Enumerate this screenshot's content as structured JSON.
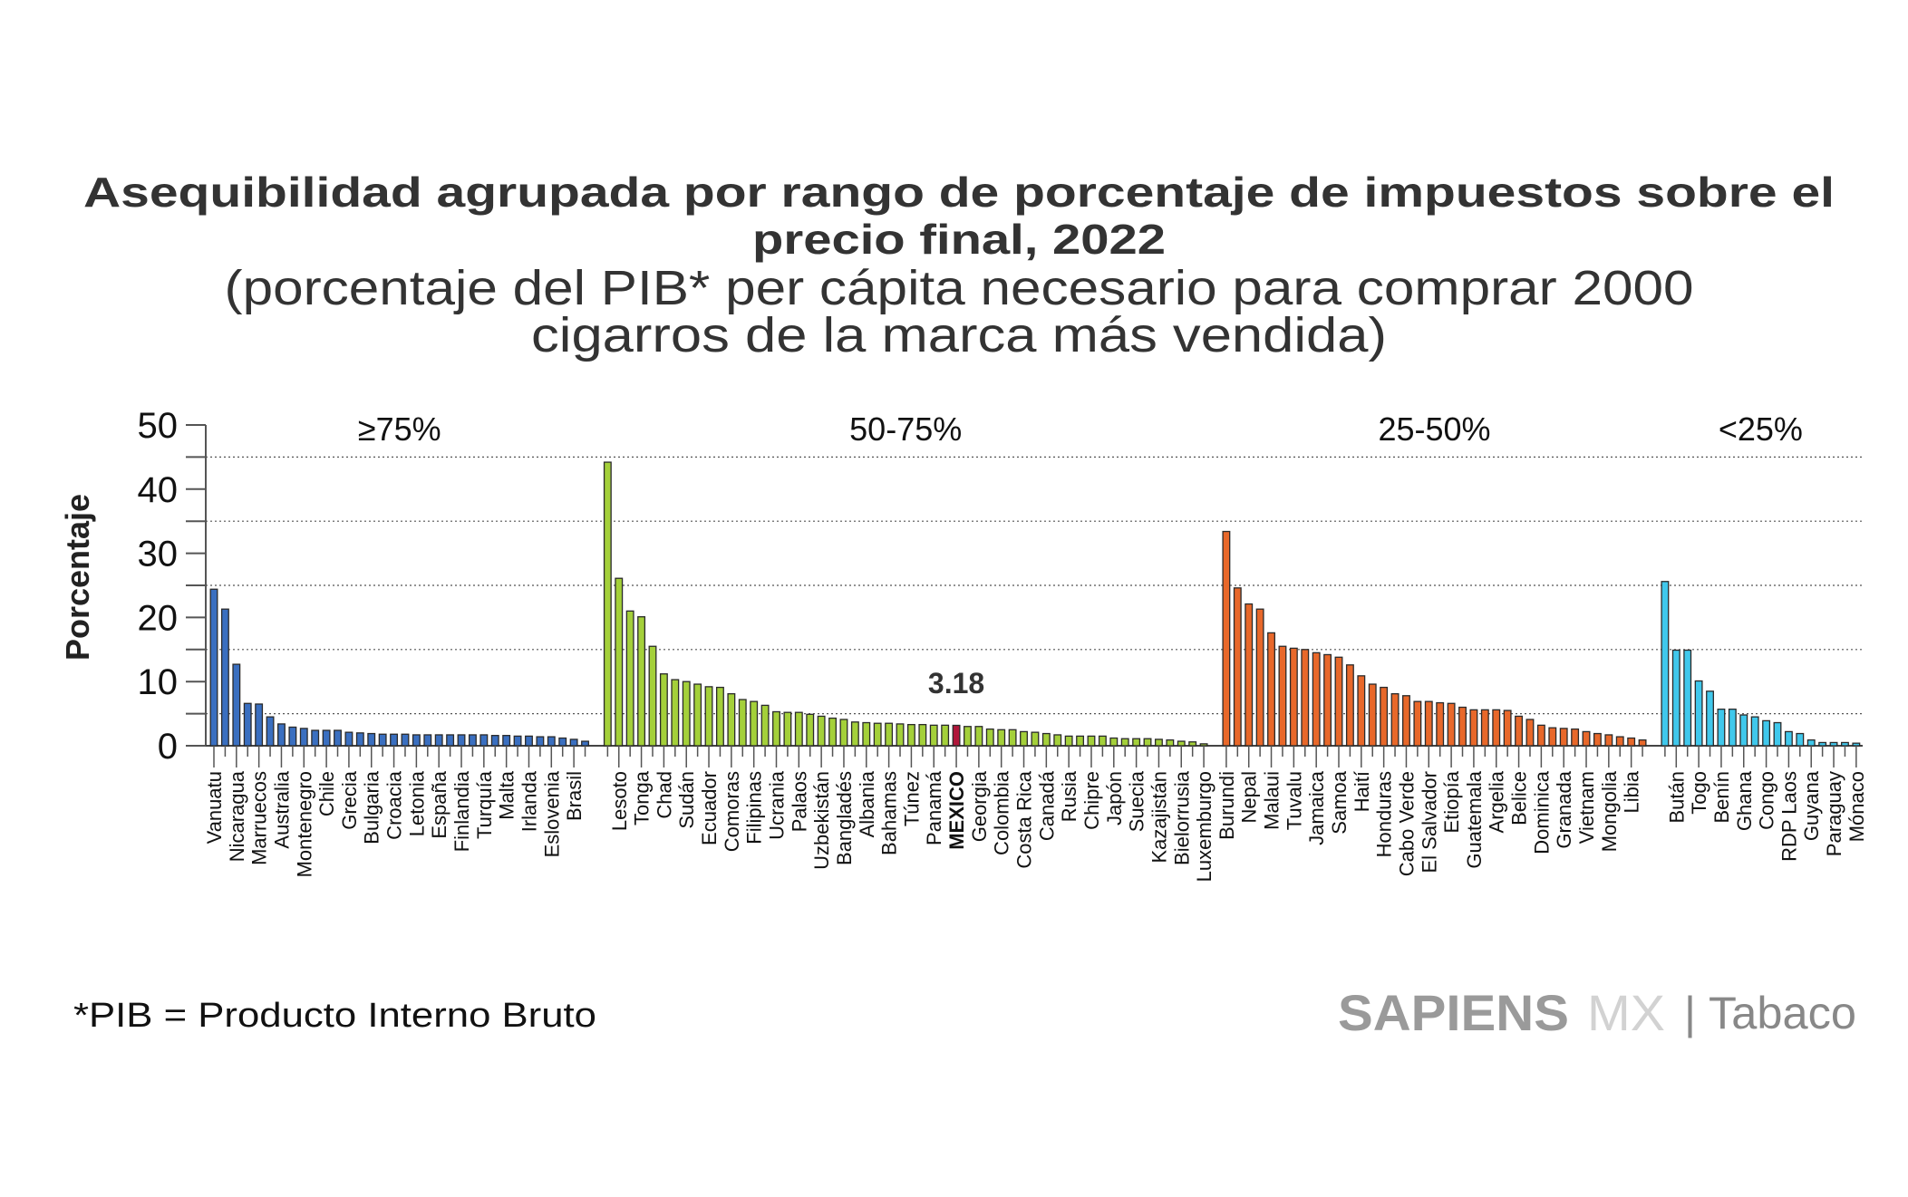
{
  "title_line1": "Asequibilidad agrupada por rango de porcentaje de impuestos sobre el",
  "title_line2": "precio final, 2022",
  "subtitle_line1": "(porcentaje del PIB* per cápita necesario para comprar 2000",
  "subtitle_line2": "cigarros de la marca más vendida)",
  "footnote": "*PIB = Producto Interno Bruto",
  "logo": {
    "brand": "SAPIENS",
    "suffix": "MX",
    "separator": "|",
    "section": "Tabaco"
  },
  "chart_data": {
    "type": "bar",
    "ylabel": "Porcentaje",
    "xlabel": "",
    "ylim": [
      0,
      50
    ],
    "yticks": [
      "0",
      "10",
      "20",
      "30",
      "40",
      "50"
    ],
    "grid": "dotted at 5, 15, 25, 35, 45",
    "highlight": {
      "country": "MEXICO",
      "value": 3.18,
      "label": "3.18",
      "color": "#b0163a"
    },
    "groups": [
      {
        "label": "≥75%",
        "color": "#3a6fc0",
        "countries": [
          "Vanuatu",
          "",
          "Nicaragua",
          "",
          "Marruecos",
          "",
          "Australia",
          "",
          "Montenegro",
          "",
          "Chile",
          "",
          "Grecia",
          "",
          "Bulgaria",
          "",
          "Croacia",
          "",
          "Letonia",
          "",
          "España",
          "",
          "Finlandia",
          "",
          "Turquía",
          "",
          "Malta",
          "",
          "Irlanda",
          "",
          "Eslovenia",
          "",
          "Brasil",
          ""
        ],
        "values": [
          24.4,
          21.3,
          12.7,
          6.6,
          6.5,
          4.5,
          3.4,
          2.9,
          2.7,
          2.4,
          2.4,
          2.4,
          2.1,
          2.0,
          1.9,
          1.8,
          1.8,
          1.8,
          1.7,
          1.7,
          1.7,
          1.7,
          1.7,
          1.7,
          1.7,
          1.6,
          1.6,
          1.5,
          1.5,
          1.4,
          1.4,
          1.2,
          1.0,
          0.7
        ]
      },
      {
        "label": "50-75%",
        "color": "#a4d03a",
        "countries": [
          "",
          "Lesoto",
          "",
          "Tonga",
          "",
          "Chad",
          "",
          "Sudán",
          "",
          "Ecuador",
          "",
          "Comoras",
          "",
          "Filipinas",
          "",
          "Ucrania",
          "",
          "Palaos",
          "",
          "Uzbekistán",
          "",
          "Bangladés",
          "",
          "Albania",
          "",
          "Bahamas",
          "",
          "Túnez",
          "",
          "Panamá",
          "",
          "MEXICO",
          "",
          "Georgia",
          "",
          "Colombia",
          "",
          "Costa Rica",
          "",
          "Canadá",
          "",
          "Rusia",
          "",
          "Chipre",
          "",
          "Japón",
          "",
          "Suecia",
          "",
          "Kazajistán",
          "",
          "Bielorrusia",
          "",
          "Luxemburgo"
        ],
        "values": [
          44.2,
          26.1,
          21.0,
          20.1,
          15.5,
          11.2,
          10.3,
          10.0,
          9.6,
          9.2,
          9.1,
          8.1,
          7.2,
          6.9,
          6.3,
          5.3,
          5.2,
          5.2,
          4.9,
          4.6,
          4.3,
          4.1,
          3.7,
          3.6,
          3.5,
          3.5,
          3.4,
          3.3,
          3.3,
          3.2,
          3.2,
          3.18,
          3.0,
          3.0,
          2.6,
          2.5,
          2.5,
          2.2,
          2.1,
          1.9,
          1.7,
          1.5,
          1.5,
          1.5,
          1.5,
          1.2,
          1.1,
          1.1,
          1.1,
          1.0,
          0.9,
          0.7,
          0.6,
          0.3
        ]
      },
      {
        "label": "25-50%",
        "color": "#e8682a",
        "countries": [
          "Burundi",
          "",
          "Nepal",
          "",
          "Malaui",
          "",
          "Tuvalu",
          "",
          "Jamaica",
          "",
          "Samoa",
          "",
          "Haití",
          "",
          "Honduras",
          "",
          "Cabo Verde",
          "",
          "El Salvador",
          "",
          "Etiopía",
          "",
          "Guatemala",
          "",
          "Argelia",
          "",
          "Belice",
          "",
          "Dominica",
          "",
          "Granada",
          "",
          "Vietnam",
          "",
          "Mongolia",
          "",
          "Libia",
          ""
        ],
        "values": [
          33.4,
          24.6,
          22.1,
          21.3,
          17.6,
          15.5,
          15.2,
          15.0,
          14.5,
          14.2,
          13.8,
          12.6,
          10.9,
          9.6,
          9.1,
          8.1,
          7.8,
          6.9,
          6.9,
          6.7,
          6.6,
          6.0,
          5.6,
          5.6,
          5.6,
          5.5,
          4.6,
          4.1,
          3.2,
          2.8,
          2.7,
          2.6,
          2.2,
          1.9,
          1.7,
          1.4,
          1.2,
          0.9
        ]
      },
      {
        "label": "<25%",
        "color": "#40c8ec",
        "countries": [
          "",
          "Bután",
          "",
          "Togo",
          "",
          "Benín",
          "",
          "Ghana",
          "",
          "Congo",
          "",
          "RDP Laos",
          "",
          "Guyana",
          "",
          "Paraguay",
          "",
          "Mónaco"
        ],
        "values": [
          25.6,
          14.9,
          14.9,
          10.1,
          8.5,
          5.7,
          5.7,
          4.8,
          4.5,
          3.9,
          3.6,
          2.2,
          1.9,
          0.9,
          0.5,
          0.5,
          0.5,
          0.4
        ]
      }
    ]
  }
}
